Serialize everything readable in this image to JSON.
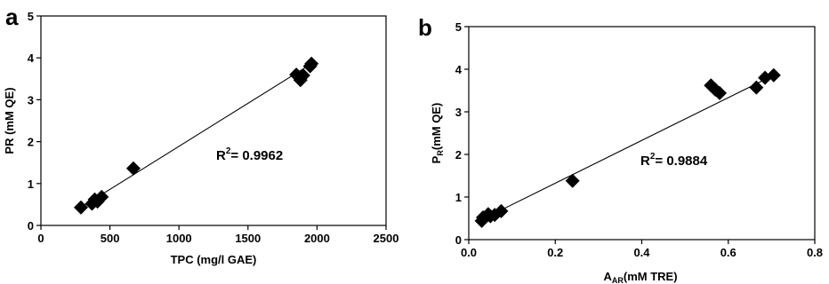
{
  "chart_data": [
    {
      "type": "scatter",
      "panel_label": "a",
      "xlabel": "TPC (mg/l GAE)",
      "ylabel": "PR (mM QE)",
      "xlim": [
        0,
        2500
      ],
      "ylim": [
        0,
        5
      ],
      "x_ticks": [
        "0",
        "500",
        "1000",
        "1500",
        "2000",
        "2500"
      ],
      "y_ticks": [
        "0",
        "1",
        "2",
        "3",
        "4",
        "5"
      ],
      "annotation": {
        "base": "R",
        "sup": "2",
        "rest": "= 0.9962"
      },
      "series": [
        {
          "marker": "diamond",
          "points": [
            [
              290,
              0.43
            ],
            [
              370,
              0.52
            ],
            [
              390,
              0.62
            ],
            [
              410,
              0.57
            ],
            [
              440,
              0.68
            ],
            [
              670,
              1.36
            ],
            [
              1850,
              3.6
            ],
            [
              1880,
              3.47
            ],
            [
              1900,
              3.58
            ],
            [
              1950,
              3.8
            ],
            [
              1960,
              3.86
            ]
          ]
        }
      ],
      "trendline": {
        "x": [
          290,
          1960
        ],
        "y": [
          0.43,
          3.86
        ]
      }
    },
    {
      "type": "scatter",
      "panel_label": "b",
      "xlabel": {
        "base": "A",
        "sub": "AR",
        "rest": "(mM TRE)"
      },
      "ylabel": {
        "base": "P",
        "sub": "R",
        "rest": "(mM QE)"
      },
      "xlim": [
        0,
        0.8
      ],
      "ylim": [
        0,
        5
      ],
      "x_ticks": [
        "0.0",
        "0.2",
        "0.4",
        "0.6",
        "0.8"
      ],
      "y_ticks": [
        "0",
        "1",
        "2",
        "3",
        "4",
        "5"
      ],
      "annotation": {
        "base": "R",
        "sup": "2",
        "rest": "= 0.9884"
      },
      "series": [
        {
          "marker": "diamond",
          "points": [
            [
              0.03,
              0.44
            ],
            [
              0.033,
              0.52
            ],
            [
              0.045,
              0.6
            ],
            [
              0.05,
              0.55
            ],
            [
              0.06,
              0.58
            ],
            [
              0.075,
              0.67
            ],
            [
              0.24,
              1.38
            ],
            [
              0.56,
              3.62
            ],
            [
              0.57,
              3.52
            ],
            [
              0.58,
              3.44
            ],
            [
              0.665,
              3.57
            ],
            [
              0.685,
              3.8
            ],
            [
              0.705,
              3.86
            ]
          ]
        }
      ],
      "trendline": {
        "x": [
          0.03,
          0.705
        ],
        "y": [
          0.47,
          3.86
        ]
      }
    }
  ]
}
